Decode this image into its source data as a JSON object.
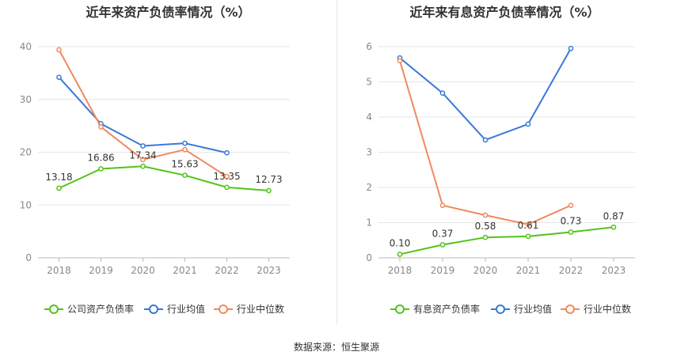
{
  "source": "数据来源：恒生聚源",
  "chart_data": [
    {
      "type": "line",
      "title": "近年来资产负债率情况（%）",
      "categories": [
        "2018",
        "2019",
        "2020",
        "2021",
        "2022",
        "2023"
      ],
      "ylim": [
        0,
        40
      ],
      "yticks": [
        0,
        10,
        20,
        30,
        40
      ],
      "grid": true,
      "legend_position": "bottom",
      "series": [
        {
          "name": "公司资产负债率",
          "color": "#52c41a",
          "values": [
            13.18,
            16.86,
            17.34,
            15.63,
            13.35,
            12.73
          ],
          "labels": [
            "13.18",
            "16.86",
            "17.34",
            "15.63",
            "13.35",
            "12.73"
          ]
        },
        {
          "name": "行业均值",
          "color": "#3a78d8",
          "values": [
            34.2,
            25.4,
            21.2,
            21.7,
            19.9,
            null
          ]
        },
        {
          "name": "行业中位数",
          "color": "#f08a5d",
          "values": [
            39.4,
            24.8,
            18.6,
            20.5,
            15.4,
            null
          ]
        }
      ]
    },
    {
      "type": "line",
      "title": "近年来有息资产负债率情况（%）",
      "categories": [
        "2018",
        "2019",
        "2020",
        "2021",
        "2022",
        "2023"
      ],
      "ylim": [
        0,
        6
      ],
      "yticks": [
        0,
        1,
        2,
        3,
        4,
        5,
        6
      ],
      "grid": true,
      "legend_position": "bottom",
      "series": [
        {
          "name": "有息资产负债率",
          "color": "#52c41a",
          "values": [
            0.1,
            0.37,
            0.58,
            0.61,
            0.73,
            0.87
          ],
          "labels": [
            "0.10",
            "0.37",
            "0.58",
            "0.61",
            "0.73",
            "0.87"
          ]
        },
        {
          "name": "行业均值",
          "color": "#3a78d8",
          "values": [
            5.68,
            4.68,
            3.35,
            3.8,
            5.95,
            null
          ]
        },
        {
          "name": "行业中位数",
          "color": "#f08a5d",
          "values": [
            5.6,
            1.49,
            1.21,
            0.95,
            1.49,
            null
          ]
        }
      ]
    }
  ]
}
